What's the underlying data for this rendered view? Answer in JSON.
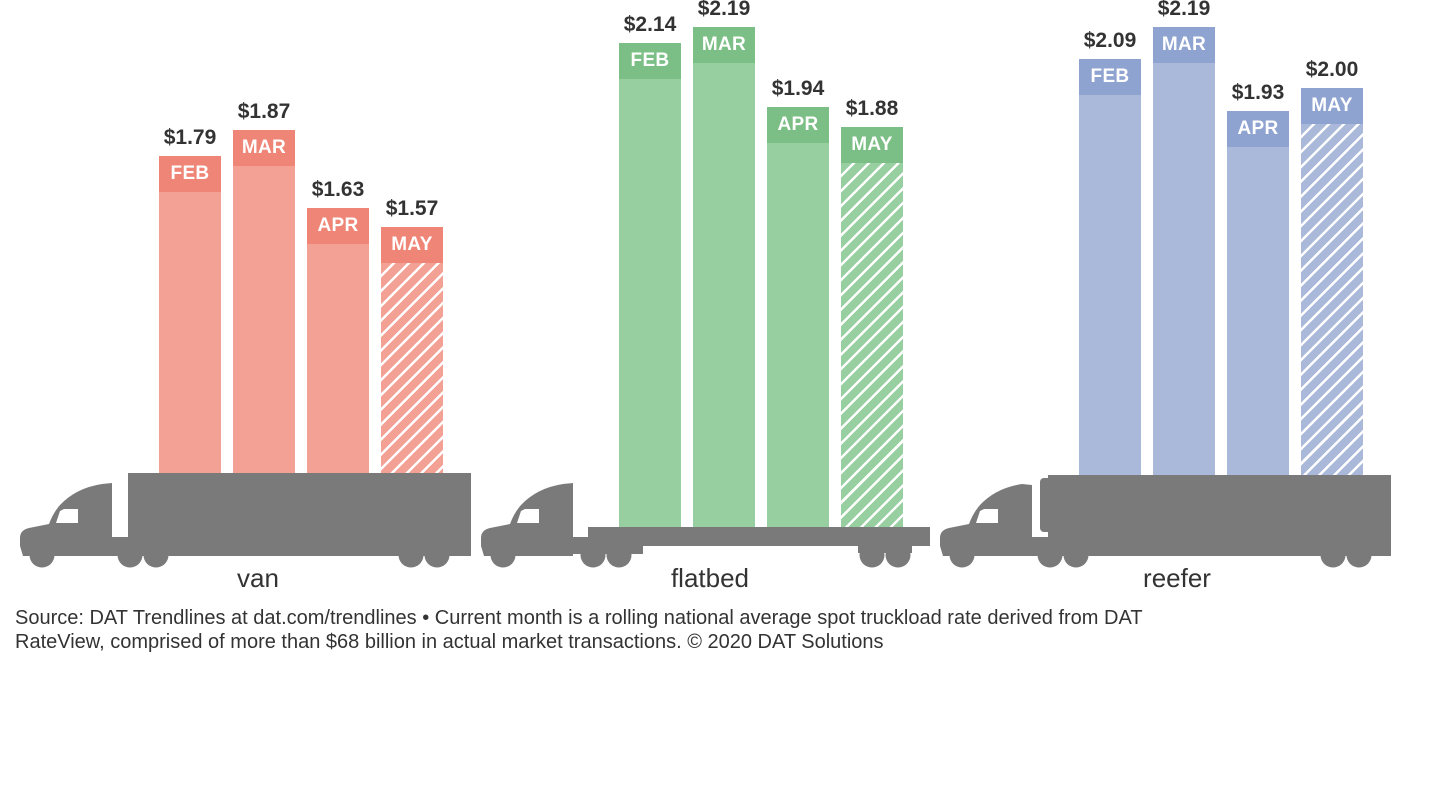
{
  "chart_data": {
    "type": "bar",
    "title": "",
    "xlabel": "",
    "ylabel": "",
    "grid": false,
    "legend": null,
    "categories": [
      "FEB",
      "MAR",
      "APR",
      "MAY"
    ],
    "series": [
      {
        "name": "van",
        "values": [
          1.79,
          1.87,
          1.63,
          1.57
        ]
      },
      {
        "name": "flatbed",
        "values": [
          2.14,
          2.19,
          1.94,
          1.88
        ]
      },
      {
        "name": "reefer",
        "values": [
          2.09,
          2.19,
          1.93,
          2.0
        ]
      }
    ],
    "value_prefix": "$",
    "current_month_hatched": "MAY",
    "annotations": [
      "van",
      "flatbed",
      "reefer"
    ]
  },
  "groups": [
    {
      "label": "van",
      "colors": {
        "bar": "#F3A195",
        "band": "#EF8576"
      },
      "bars": [
        {
          "month": "FEB",
          "value_label": "$1.79",
          "hatched": false
        },
        {
          "month": "MAR",
          "value_label": "$1.87",
          "hatched": false
        },
        {
          "month": "APR",
          "value_label": "$1.63",
          "hatched": false
        },
        {
          "month": "MAY",
          "value_label": "$1.57",
          "hatched": true
        }
      ]
    },
    {
      "label": "flatbed",
      "colors": {
        "bar": "#97CFA0",
        "band": "#7CBF86"
      },
      "bars": [
        {
          "month": "FEB",
          "value_label": "$2.14",
          "hatched": false
        },
        {
          "month": "MAR",
          "value_label": "$2.19",
          "hatched": false
        },
        {
          "month": "APR",
          "value_label": "$1.94",
          "hatched": false
        },
        {
          "month": "MAY",
          "value_label": "$1.88",
          "hatched": true
        }
      ]
    },
    {
      "label": "reefer",
      "colors": {
        "bar": "#AAB9DA",
        "band": "#8FA3D1"
      },
      "bars": [
        {
          "month": "FEB",
          "value_label": "$2.09",
          "hatched": false
        },
        {
          "month": "MAR",
          "value_label": "$2.19",
          "hatched": false
        },
        {
          "month": "APR",
          "value_label": "$1.93",
          "hatched": false
        },
        {
          "month": "MAY",
          "value_label": "$2.00",
          "hatched": true
        }
      ]
    }
  ],
  "truck_color": "#7A7A7A",
  "footer": {
    "lines": [
      "Source: DAT Trendlines at dat.com/trendlines • Current month is a rolling national average spot truckload rate derived from DAT",
      "RateView, comprised of more than $68 billion in actual market transactions. © 2020 DAT Solutions"
    ]
  }
}
